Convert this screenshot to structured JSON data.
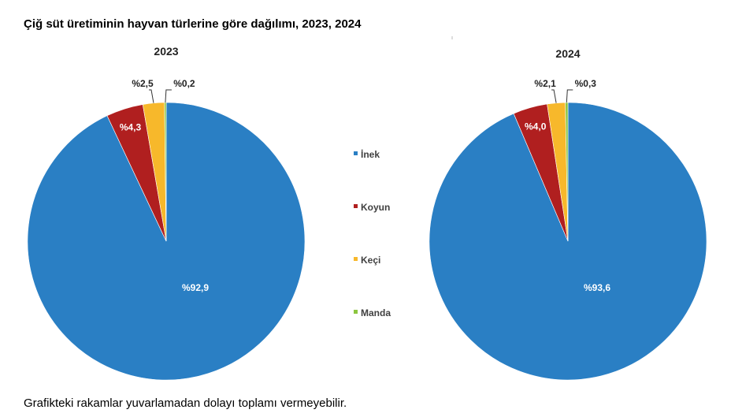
{
  "title": "Çiğ süt üretiminin hayvan türlerine göre dağılımı, 2023, 2024",
  "footnote": "Grafikteki rakamlar yuvarlamadan dolayı toplamı vermeyebilir.",
  "chart_data": {
    "type": "pie",
    "legend_position": "center",
    "categories": [
      "İnek",
      "Koyun",
      "Keçi",
      "Manda"
    ],
    "colors": [
      "#2a7fc4",
      "#b01f1f",
      "#f7b82b",
      "#8cc63f"
    ],
    "series": [
      {
        "name": "2023",
        "values": [
          92.9,
          4.3,
          2.5,
          0.2
        ],
        "labels": [
          "%92,9",
          "%4,3",
          "%2,5",
          "%0,2"
        ]
      },
      {
        "name": "2024",
        "values": [
          93.6,
          4.0,
          2.1,
          0.3
        ],
        "labels": [
          "%93,6",
          "%4,0",
          "%2,1",
          "%0,3"
        ]
      }
    ]
  }
}
